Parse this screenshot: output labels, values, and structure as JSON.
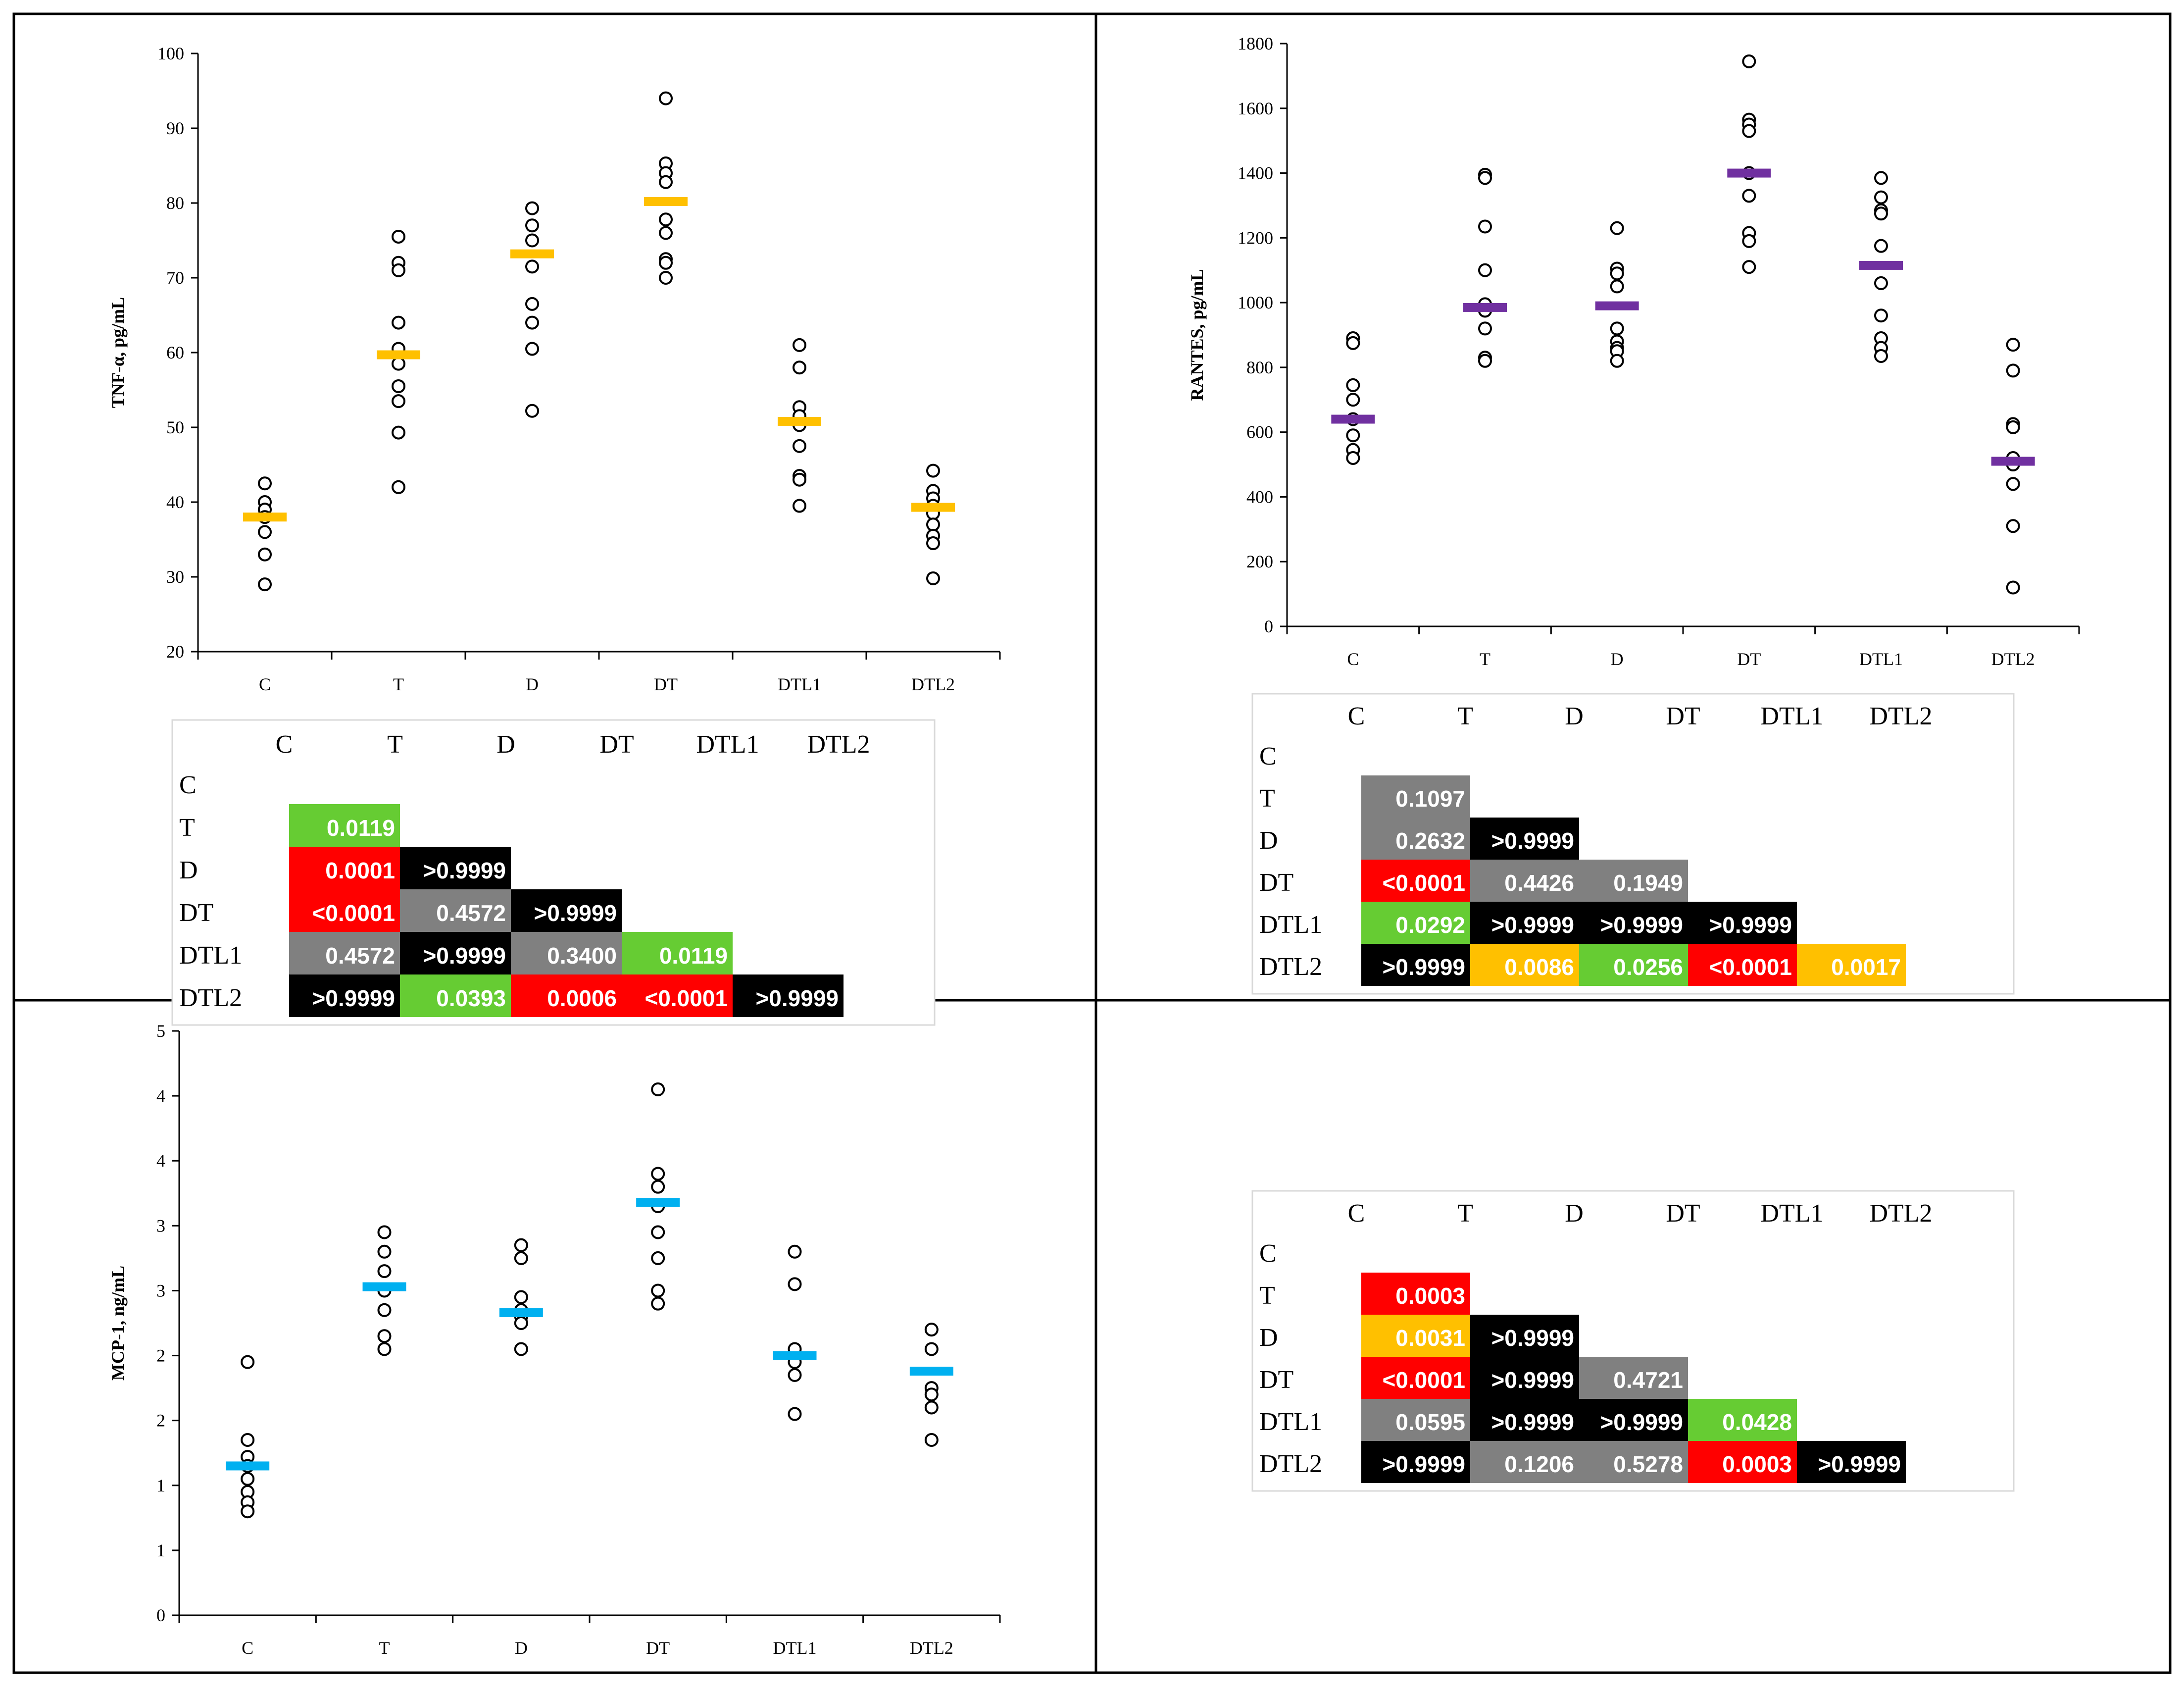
{
  "colors": {
    "tnf_mean": "#FFC000",
    "rantes_mean": "#7030A0",
    "mcp_mean": "#00B0F0",
    "sig_green": "#66CC33",
    "sig_red": "#FF0000",
    "sig_black": "#000000",
    "sig_gray": "#808080",
    "sig_orange": "#FFC000"
  },
  "chart_data": [
    {
      "id": "tnf",
      "type": "scatter",
      "title": "",
      "xlabel": "",
      "ylabel": "TNF-α, pg/mL",
      "categories": [
        "C",
        "T",
        "D",
        "DT",
        "DTL1",
        "DTL2"
      ],
      "ylim": [
        20,
        100
      ],
      "ytick_labels": [
        "20",
        "30",
        "40",
        "50",
        "60",
        "70",
        "80",
        "90",
        "100"
      ],
      "points": [
        [
          42.5,
          40,
          39,
          38,
          36,
          33,
          29
        ],
        [
          75.5,
          72,
          71,
          64,
          60.5,
          58.5,
          55.5,
          53.5,
          49.3,
          42
        ],
        [
          79.3,
          77,
          75,
          71.5,
          66.5,
          64,
          60.5,
          52.2
        ],
        [
          94,
          85.3,
          84,
          82.8,
          77.8,
          76,
          72.5,
          72,
          70
        ],
        [
          61,
          58,
          52.7,
          51.5,
          50.3,
          47.5,
          43.5,
          43,
          39.5
        ],
        [
          44.2,
          41.5,
          40.5,
          39.5,
          38.5,
          37,
          35.5,
          34.5,
          29.8
        ]
      ],
      "means": [
        38,
        59.7,
        73.2,
        80.2,
        50.8,
        39.3
      ],
      "matrix": {
        "labels": [
          "C",
          "T",
          "D",
          "DT",
          "DTL1",
          "DTL2"
        ],
        "rows": [
          [],
          [
            {
              "v": "0.0119",
              "c": "green"
            }
          ],
          [
            {
              "v": "0.0001",
              "c": "red"
            },
            {
              "v": ">0.9999",
              "c": "black"
            }
          ],
          [
            {
              "v": "<0.0001",
              "c": "red"
            },
            {
              "v": "0.4572",
              "c": "gray"
            },
            {
              "v": ">0.9999",
              "c": "black"
            }
          ],
          [
            {
              "v": "0.4572",
              "c": "gray"
            },
            {
              "v": ">0.9999",
              "c": "black"
            },
            {
              "v": "0.3400",
              "c": "gray"
            },
            {
              "v": "0.0119",
              "c": "green"
            }
          ],
          [
            {
              "v": ">0.9999",
              "c": "black"
            },
            {
              "v": "0.0393",
              "c": "green"
            },
            {
              "v": "0.0006",
              "c": "red"
            },
            {
              "v": "<0.0001",
              "c": "red"
            },
            {
              "v": ">0.9999",
              "c": "black"
            }
          ]
        ]
      }
    },
    {
      "id": "rantes",
      "type": "scatter",
      "title": "",
      "xlabel": "",
      "ylabel": "RANTES, pg/mL",
      "categories": [
        "C",
        "T",
        "D",
        "DT",
        "DTL1",
        "DTL2"
      ],
      "ylim": [
        0,
        1800
      ],
      "ytick_labels": [
        "0",
        "200",
        "400",
        "600",
        "800",
        "1000",
        "1200",
        "1400",
        "1600",
        "1800"
      ],
      "points": [
        [
          890,
          875,
          745,
          700,
          640,
          590,
          545,
          520
        ],
        [
          1395,
          1385,
          1235,
          1100,
          995,
          975,
          920,
          830,
          820
        ],
        [
          1230,
          1105,
          1090,
          1050,
          920,
          880,
          860,
          850,
          820
        ],
        [
          1745,
          1565,
          1550,
          1530,
          1400,
          1330,
          1215,
          1190,
          1110
        ],
        [
          1385,
          1325,
          1285,
          1275,
          1175,
          1060,
          960,
          890,
          860,
          835
        ],
        [
          870,
          790,
          625,
          615,
          520,
          500,
          440,
          310,
          120
        ]
      ],
      "means": [
        640,
        985,
        990,
        1400,
        1115,
        510
      ],
      "matrix": {
        "labels": [
          "C",
          "T",
          "D",
          "DT",
          "DTL1",
          "DTL2"
        ],
        "rows": [
          [],
          [
            {
              "v": "0.1097",
              "c": "gray"
            }
          ],
          [
            {
              "v": "0.2632",
              "c": "gray"
            },
            {
              "v": ">0.9999",
              "c": "black"
            }
          ],
          [
            {
              "v": "<0.0001",
              "c": "red"
            },
            {
              "v": "0.4426",
              "c": "gray"
            },
            {
              "v": "0.1949",
              "c": "gray"
            }
          ],
          [
            {
              "v": "0.0292",
              "c": "green"
            },
            {
              "v": ">0.9999",
              "c": "black"
            },
            {
              "v": ">0.9999",
              "c": "black"
            },
            {
              "v": ">0.9999",
              "c": "black"
            }
          ],
          [
            {
              "v": ">0.9999",
              "c": "black"
            },
            {
              "v": "0.0086",
              "c": "orange"
            },
            {
              "v": "0.0256",
              "c": "green"
            },
            {
              "v": "<0.0001",
              "c": "red"
            },
            {
              "v": "0.0017",
              "c": "orange"
            }
          ]
        ]
      }
    },
    {
      "id": "mcp",
      "type": "scatter",
      "title": "",
      "xlabel": "",
      "ylabel": "MCP-1, ng/mL",
      "categories": [
        "C",
        "T",
        "D",
        "DT",
        "DTL1",
        "DTL2"
      ],
      "ylim": [
        0,
        4.5
      ],
      "ytick_labels": [
        "0",
        "1",
        "1",
        "2",
        "2",
        "3",
        "3",
        "4",
        "4",
        "5"
      ],
      "points": [
        [
          1.95,
          1.35,
          1.22,
          1.15,
          1.05,
          0.95,
          0.87,
          0.8
        ],
        [
          2.95,
          2.8,
          2.65,
          2.5,
          2.35,
          2.15,
          2.05
        ],
        [
          2.85,
          2.75,
          2.45,
          2.35,
          2.3,
          2.25,
          2.05
        ],
        [
          4.05,
          3.4,
          3.3,
          3.15,
          2.95,
          2.75,
          2.5,
          2.4
        ],
        [
          2.8,
          2.55,
          2.05,
          1.95,
          1.85,
          1.55
        ],
        [
          2.2,
          2.05,
          1.75,
          1.7,
          1.6,
          1.35
        ]
      ],
      "means": [
        1.15,
        2.53,
        2.33,
        3.18,
        2.0,
        1.88
      ],
      "matrix": {
        "labels": [
          "C",
          "T",
          "D",
          "DT",
          "DTL1",
          "DTL2"
        ],
        "rows": [
          [],
          [
            {
              "v": "0.0003",
              "c": "red"
            }
          ],
          [
            {
              "v": "0.0031",
              "c": "orange"
            },
            {
              "v": ">0.9999",
              "c": "black"
            }
          ],
          [
            {
              "v": "<0.0001",
              "c": "red"
            },
            {
              "v": ">0.9999",
              "c": "black"
            },
            {
              "v": "0.4721",
              "c": "gray"
            }
          ],
          [
            {
              "v": "0.0595",
              "c": "gray"
            },
            {
              "v": ">0.9999",
              "c": "black"
            },
            {
              "v": ">0.9999",
              "c": "black"
            },
            {
              "v": "0.0428",
              "c": "green"
            }
          ],
          [
            {
              "v": ">0.9999",
              "c": "black"
            },
            {
              "v": "0.1206",
              "c": "gray"
            },
            {
              "v": "0.5278",
              "c": "gray"
            },
            {
              "v": "0.0003",
              "c": "red"
            },
            {
              "v": ">0.9999",
              "c": "black"
            }
          ]
        ]
      }
    }
  ]
}
